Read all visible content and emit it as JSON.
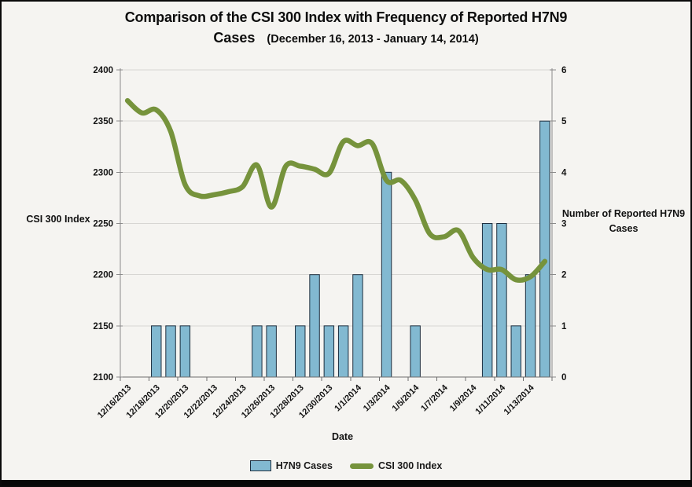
{
  "title": {
    "line1": "Comparison of the CSI 300 Index with Frequency of Reported H7N9",
    "line2_main": "Cases",
    "line2_sub": "(December 16, 2013 - January 14, 2014)"
  },
  "axes": {
    "left_title": "CSI 300 Index",
    "right_title": "Number of Reported H7N9 Cases",
    "x_title": "Date"
  },
  "legend": {
    "items": [
      {
        "label": "H7N9 Cases",
        "type": "bar",
        "color": "#82B9D1"
      },
      {
        "label": "CSI 300 Index",
        "type": "line",
        "color": "#76933C"
      }
    ]
  },
  "chart_data": {
    "type": "combo",
    "x": [
      "12/16/2013",
      "12/17/2013",
      "12/18/2013",
      "12/19/2013",
      "12/20/2013",
      "12/21/2013",
      "12/22/2013",
      "12/23/2013",
      "12/24/2013",
      "12/25/2013",
      "12/26/2013",
      "12/27/2013",
      "12/28/2013",
      "12/29/2013",
      "12/30/2013",
      "12/31/2013",
      "1/1/2014",
      "1/2/2014",
      "1/3/2014",
      "1/4/2014",
      "1/5/2014",
      "1/6/2014",
      "1/7/2014",
      "1/8/2014",
      "1/9/2014",
      "1/10/2014",
      "1/11/2014",
      "1/12/2014",
      "1/13/2014",
      "1/14/2014"
    ],
    "x_label_every": 2,
    "series": [
      {
        "name": "H7N9 Cases",
        "type": "bar",
        "axis": "right",
        "color": "#82B9D1",
        "border_color": "#1E2F3F",
        "values": [
          0,
          0,
          1,
          1,
          1,
          0,
          0,
          0,
          0,
          1,
          1,
          0,
          1,
          2,
          1,
          1,
          2,
          0,
          4,
          0,
          1,
          0,
          0,
          0,
          0,
          3,
          3,
          1,
          2,
          5
        ]
      },
      {
        "name": "CSI 300 Index",
        "type": "line",
        "axis": "left",
        "color": "#76933C",
        "smooth": true,
        "values": [
          2370,
          2358,
          2361,
          2340,
          2288,
          2277,
          2278,
          2281,
          2286,
          2307,
          2266,
          2306,
          2306,
          2303,
          2299,
          2330,
          2326,
          2328,
          2292,
          2292,
          2273,
          2240,
          2237,
          2243,
          2217,
          2205,
          2205,
          2195,
          2198,
          2213
        ]
      }
    ],
    "left_axis": {
      "title": "CSI 300 Index",
      "min": 2100,
      "max": 2400,
      "step": 50
    },
    "right_axis": {
      "title": "Number of Reported H7N9 Cases",
      "min": 0,
      "max": 6,
      "step": 1
    },
    "x_axis": {
      "title": "Date"
    },
    "grid": true,
    "legend_position": "bottom",
    "colors": {
      "grid": "#D7D6D3",
      "axis": "#8A8A8A",
      "tick_text": "#141414"
    }
  }
}
